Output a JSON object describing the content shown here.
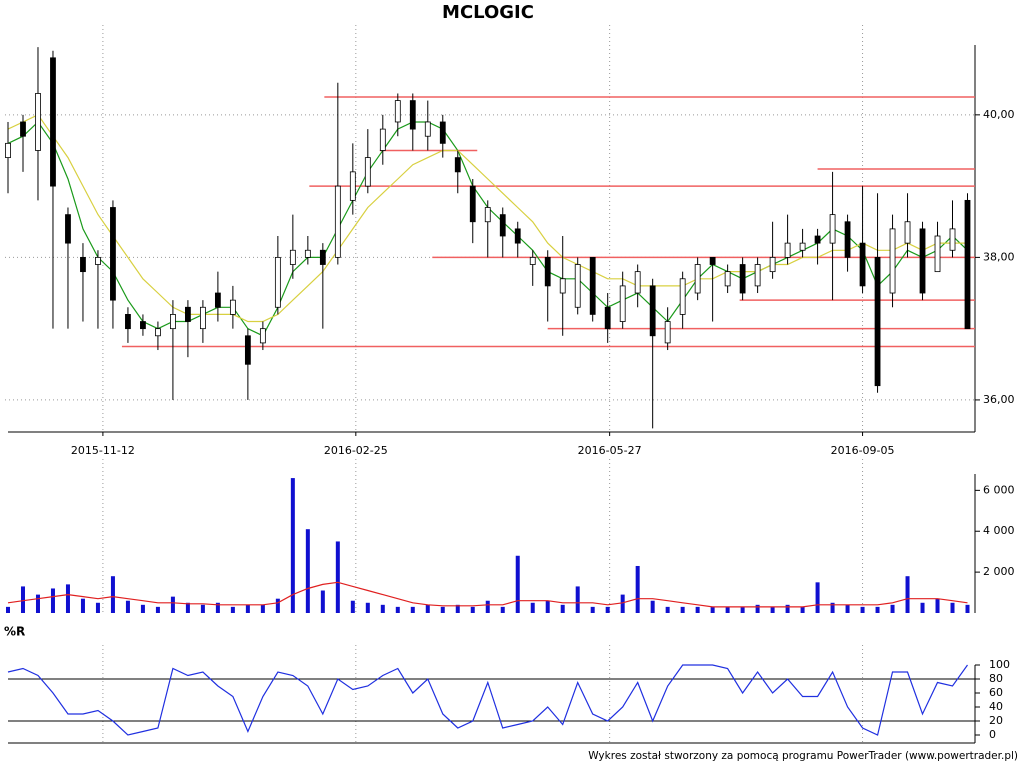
{
  "footer": "Wykres został stworzony za pomocą programu PowerTrader (www.powertrader.pl)",
  "chart_data": [
    {
      "type": "candlestick",
      "title": "MCLOGIC",
      "open": [
        39.4,
        39.9,
        39.5,
        40.8,
        38.6,
        38.0,
        37.9,
        38.7,
        37.2,
        37.1,
        36.9,
        37.0,
        37.3,
        37.0,
        37.5,
        37.2,
        36.9,
        36.8,
        37.3,
        37.9,
        38.0,
        38.1,
        38.0,
        38.8,
        39.0,
        39.5,
        39.9,
        40.2,
        39.7,
        39.9,
        39.4,
        39.0,
        38.5,
        38.6,
        38.4,
        37.9,
        38.0,
        37.5,
        37.3,
        38.0,
        37.3,
        37.1,
        37.5,
        37.6,
        36.8,
        37.2,
        37.5,
        38.0,
        37.6,
        37.9,
        37.6,
        37.8,
        38.0,
        38.1,
        38.3,
        38.2,
        38.5,
        38.2,
        38.0,
        37.5,
        38.2,
        38.4,
        37.8,
        38.1,
        38.8
      ],
      "high": [
        39.9,
        40.0,
        40.95,
        40.9,
        38.7,
        38.2,
        38.1,
        38.8,
        37.3,
        37.2,
        37.1,
        37.4,
        37.4,
        37.4,
        37.8,
        37.6,
        37.0,
        37.1,
        38.3,
        38.6,
        38.3,
        38.2,
        40.45,
        39.6,
        39.8,
        40.0,
        40.3,
        40.3,
        40.2,
        40.0,
        39.5,
        39.1,
        38.8,
        38.7,
        38.5,
        38.1,
        38.1,
        38.3,
        38.0,
        38.0,
        37.5,
        37.8,
        37.9,
        37.7,
        37.3,
        37.8,
        38.0,
        38.0,
        37.9,
        38.0,
        38.0,
        38.5,
        38.6,
        38.4,
        38.4,
        39.2,
        38.6,
        39.0,
        38.9,
        38.6,
        38.9,
        38.5,
        38.5,
        38.8,
        38.9
      ],
      "low": [
        38.9,
        39.2,
        38.8,
        37.0,
        37.0,
        37.1,
        37.0,
        37.0,
        36.8,
        36.9,
        36.7,
        36.0,
        36.6,
        36.8,
        37.1,
        37.0,
        36.0,
        36.7,
        37.2,
        37.7,
        37.9,
        37.0,
        37.9,
        38.6,
        38.9,
        39.3,
        39.7,
        39.5,
        39.5,
        39.4,
        38.9,
        38.2,
        38.0,
        38.0,
        38.0,
        37.6,
        37.1,
        36.9,
        37.2,
        37.1,
        36.8,
        37.0,
        37.3,
        35.6,
        36.7,
        37.0,
        37.4,
        37.1,
        37.5,
        37.4,
        37.5,
        37.7,
        37.9,
        38.0,
        37.9,
        37.4,
        37.8,
        37.5,
        36.1,
        37.3,
        38.0,
        37.4,
        37.8,
        38.0,
        37.0
      ],
      "close": [
        39.6,
        39.7,
        40.3,
        39.0,
        38.2,
        37.8,
        38.0,
        37.4,
        37.0,
        37.0,
        37.0,
        37.2,
        37.1,
        37.3,
        37.3,
        37.4,
        36.5,
        37.0,
        38.0,
        38.1,
        38.1,
        37.9,
        39.0,
        39.2,
        39.4,
        39.8,
        40.2,
        39.8,
        39.9,
        39.6,
        39.2,
        38.5,
        38.7,
        38.3,
        38.2,
        38.0,
        37.6,
        37.7,
        37.9,
        37.2,
        37.0,
        37.6,
        37.8,
        36.9,
        37.1,
        37.7,
        37.9,
        37.9,
        37.8,
        37.5,
        37.9,
        38.0,
        38.2,
        38.2,
        38.2,
        38.6,
        38.0,
        37.6,
        36.2,
        38.4,
        38.5,
        37.5,
        38.3,
        38.4,
        37.0
      ],
      "series": [
        {
          "color": "#1a9a1a",
          "values": [
            39.6,
            39.7,
            39.9,
            39.6,
            39.1,
            38.4,
            38.0,
            37.8,
            37.4,
            37.1,
            37.0,
            37.1,
            37.1,
            37.2,
            37.3,
            37.3,
            37.0,
            36.9,
            37.3,
            37.8,
            38.0,
            38.0,
            38.4,
            38.8,
            39.2,
            39.5,
            39.8,
            39.9,
            39.9,
            39.8,
            39.5,
            39.0,
            38.7,
            38.5,
            38.3,
            38.1,
            37.8,
            37.7,
            37.7,
            37.5,
            37.3,
            37.4,
            37.5,
            37.3,
            37.1,
            37.4,
            37.7,
            37.9,
            37.8,
            37.7,
            37.8,
            37.9,
            38.0,
            38.1,
            38.2,
            38.4,
            38.3,
            38.1,
            37.6,
            37.8,
            38.1,
            38.0,
            38.1,
            38.3,
            38.1
          ]
        },
        {
          "color": "#d8d040",
          "values": [
            39.8,
            39.9,
            40.0,
            39.7,
            39.4,
            39.0,
            38.6,
            38.3,
            38.0,
            37.7,
            37.5,
            37.3,
            37.2,
            37.2,
            37.2,
            37.2,
            37.1,
            37.1,
            37.2,
            37.4,
            37.6,
            37.8,
            38.1,
            38.4,
            38.7,
            38.9,
            39.1,
            39.3,
            39.4,
            39.5,
            39.5,
            39.3,
            39.1,
            38.9,
            38.7,
            38.5,
            38.2,
            38.0,
            37.9,
            37.8,
            37.7,
            37.7,
            37.6,
            37.6,
            37.6,
            37.6,
            37.7,
            37.7,
            37.8,
            37.8,
            37.8,
            37.9,
            37.9,
            38.0,
            38.0,
            38.1,
            38.1,
            38.2,
            38.1,
            38.1,
            38.2,
            38.1,
            38.2,
            38.2,
            38.2
          ]
        }
      ],
      "levels": [
        {
          "value": 40.25,
          "from": 21.1,
          "to": 64.5
        },
        {
          "value": 39.5,
          "from": 24.8,
          "to": 31.3
        },
        {
          "value": 39.24,
          "from": 54,
          "to": 64.5
        },
        {
          "value": 39.0,
          "from": 20.1,
          "to": 64.5
        },
        {
          "value": 38.0,
          "from": 28.3,
          "to": 64.5
        },
        {
          "value": 37.4,
          "from": 48.8,
          "to": 64.5
        },
        {
          "value": 37.0,
          "from": 36,
          "to": 64.5
        },
        {
          "value": 36.75,
          "from": 7.6,
          "to": 64.5
        }
      ],
      "level_color": "#f06060",
      "xlim": [
        -0.2,
        64.5
      ],
      "xticks": [
        {
          "value": 6.33,
          "label": "2015-11-12"
        },
        {
          "value": 23.2,
          "label": "2016-02-25"
        },
        {
          "value": 40.13,
          "label": "2016-05-27"
        },
        {
          "value": 57.0,
          "label": "2016-09-05"
        }
      ],
      "ylim": [
        35.55,
        40.98
      ],
      "yticks": [
        {
          "value": 36,
          "label": "36,00"
        },
        {
          "value": 38,
          "label": "38,00"
        },
        {
          "value": 40,
          "label": "40,00"
        }
      ],
      "grid": true
    },
    {
      "type": "bar",
      "color": "#1010d0",
      "values": [
        300,
        1300,
        900,
        1200,
        1400,
        700,
        500,
        1800,
        600,
        400,
        300,
        800,
        500,
        400,
        500,
        300,
        400,
        400,
        700,
        6600,
        4100,
        1100,
        3500,
        600,
        500,
        400,
        300,
        300,
        400,
        300,
        400,
        300,
        600,
        300,
        2800,
        500,
        600,
        400,
        1300,
        300,
        300,
        900,
        2300,
        600,
        300,
        300,
        300,
        300,
        300,
        300,
        400,
        300,
        400,
        300,
        1500,
        500,
        400,
        300,
        300,
        400,
        1800,
        500,
        700,
        500,
        400
      ],
      "line": {
        "color": "#e02020",
        "values": [
          500,
          600,
          700,
          800,
          900,
          800,
          700,
          800,
          700,
          600,
          500,
          500,
          450,
          450,
          400,
          400,
          400,
          400,
          500,
          900,
          1200,
          1400,
          1500,
          1300,
          1100,
          900,
          700,
          500,
          400,
          350,
          350,
          350,
          400,
          400,
          600,
          600,
          600,
          500,
          500,
          500,
          400,
          500,
          700,
          700,
          600,
          500,
          400,
          300,
          300,
          300,
          300,
          300,
          300,
          300,
          400,
          400,
          400,
          400,
          400,
          500,
          700,
          700,
          700,
          600,
          500
        ]
      },
      "xlim": [
        -0.2,
        64.5
      ],
      "ylim": [
        0,
        6800
      ],
      "yticks": [
        {
          "value": 2000,
          "label": "2 000"
        },
        {
          "value": 4000,
          "label": "4 000"
        },
        {
          "value": 6000,
          "label": "6 000"
        }
      ]
    },
    {
      "type": "line",
      "title": "%R",
      "color": "#2030e0",
      "values": [
        90,
        95,
        85,
        60,
        30,
        30,
        35,
        20,
        0,
        5,
        10,
        95,
        85,
        90,
        70,
        55,
        5,
        55,
        90,
        85,
        70,
        30,
        80,
        65,
        70,
        85,
        95,
        60,
        80,
        30,
        10,
        20,
        75,
        10,
        15,
        20,
        40,
        15,
        75,
        30,
        20,
        40,
        75,
        20,
        70,
        100,
        100,
        100,
        95,
        60,
        90,
        60,
        80,
        55,
        55,
        90,
        40,
        10,
        0,
        90,
        90,
        30,
        75,
        70,
        100
      ],
      "levels": [
        20,
        80
      ],
      "xlim": [
        -0.2,
        64.5
      ],
      "ylim": [
        0,
        100
      ],
      "yticks": [
        0,
        20,
        40,
        60,
        80,
        100
      ]
    }
  ]
}
